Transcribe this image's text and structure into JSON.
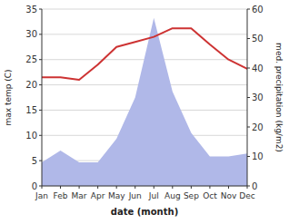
{
  "chart_data": {
    "type": "line",
    "x_label": "date (month)",
    "y_label": "max temp (C)",
    "y2_label": "med. precipitation (kg/m2)",
    "categories": [
      "Jan",
      "Feb",
      "Mar",
      "Apr",
      "May",
      "Jun",
      "Jul",
      "Aug",
      "Sep",
      "Oct",
      "Nov",
      "Dec"
    ],
    "series": [
      {
        "type": "area",
        "axis": "y2",
        "color": "#b0b8e8",
        "values": [
          8,
          12,
          8,
          8,
          16,
          30,
          57,
          32,
          18,
          10,
          10,
          11
        ]
      },
      {
        "type": "line",
        "color": "#cd3333",
        "values": [
          21.5,
          21.5,
          21.0,
          24.0,
          27.5,
          28.5,
          29.5,
          31.2,
          31.2,
          28.0,
          25.0,
          23.2
        ]
      }
    ],
    "ylim": [
      0,
      35
    ],
    "yticks": [
      0,
      5,
      10,
      15,
      20,
      25,
      30,
      35
    ],
    "y2lim": [
      0,
      60
    ],
    "y2ticks": [
      0,
      10,
      20,
      30,
      40,
      50,
      60
    ],
    "grid": true
  }
}
